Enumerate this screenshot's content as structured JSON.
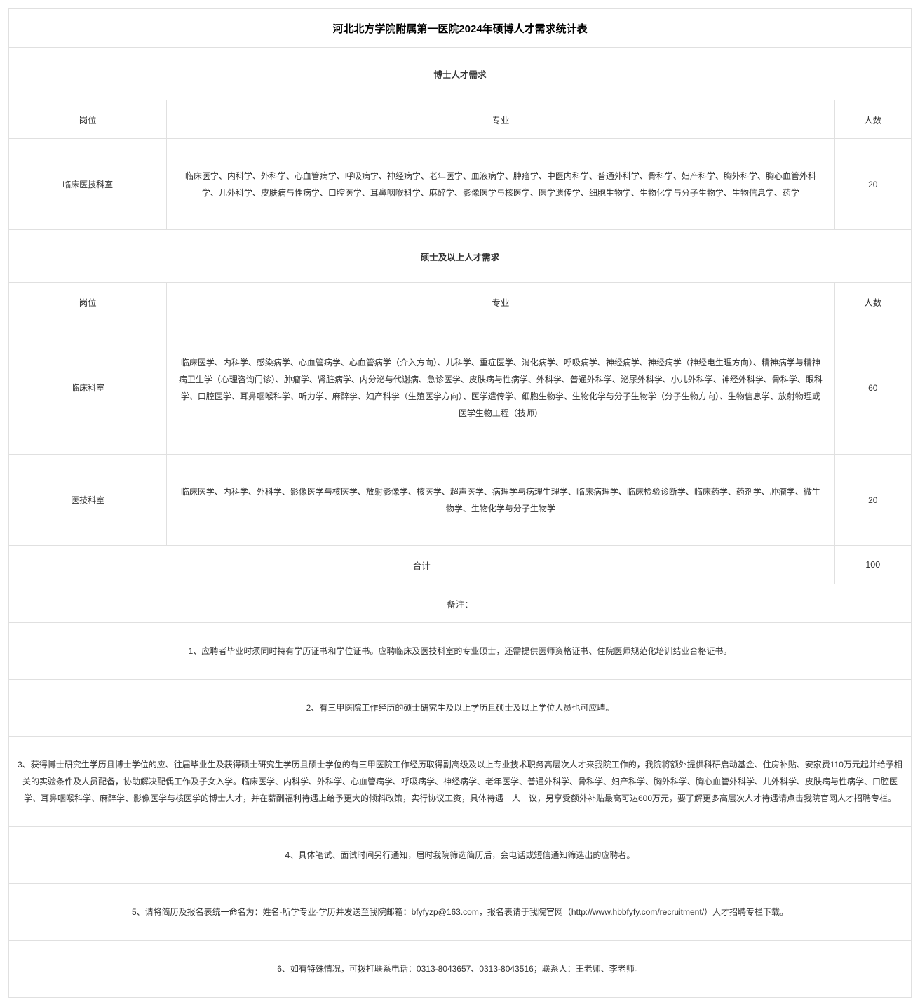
{
  "title": "河北北方学院附属第一医院2024年硕博人才需求统计表",
  "doctor": {
    "section": "博士人才需求",
    "headers": {
      "position": "岗位",
      "major": "专业",
      "count": "人数"
    },
    "rows": [
      {
        "position": "临床医技科室",
        "major": "临床医学、内科学、外科学、心血管病学、呼吸病学、神经病学、老年医学、血液病学、肿瘤学、中医内科学、普通外科学、骨科学、妇产科学、胸外科学、胸心血管外科学、儿外科学、皮肤病与性病学、口腔医学、耳鼻咽喉科学、麻醉学、影像医学与核医学、医学遗传学、细胞生物学、生物化学与分子生物学、生物信息学、药学",
        "count": "20"
      }
    ]
  },
  "master": {
    "section": "硕士及以上人才需求",
    "headers": {
      "position": "岗位",
      "major": "专业",
      "count": "人数"
    },
    "rows": [
      {
        "position": "临床科室",
        "major": "临床医学、内科学、感染病学、心血管病学、心血管病学（介入方向）、儿科学、重症医学、消化病学、呼吸病学、神经病学、神经病学（神经电生理方向）、精神病学与精神病卫生学（心理咨询门诊）、肿瘤学、肾脏病学、内分泌与代谢病、急诊医学、皮肤病与性病学、外科学、普通外科学、泌尿外科学、小儿外科学、神经外科学、骨科学、眼科学、口腔医学、耳鼻咽喉科学、听力学、麻醉学、妇产科学（生殖医学方向）、医学遗传学、细胞生物学、生物化学与分子生物学（分子生物方向）、生物信息学、放射物理或医学生物工程（技师）",
        "count": "60"
      },
      {
        "position": "医技科室",
        "major": "临床医学、内科学、外科学、影像医学与核医学、放射影像学、核医学、超声医学、病理学与病理生理学、临床病理学、临床检验诊断学、临床药学、药剂学、肿瘤学、微生物学、生物化学与分子生物学",
        "count": "20"
      }
    ]
  },
  "total": {
    "label": "合计",
    "count": "100"
  },
  "notes": {
    "header": "备注：",
    "items": [
      "1、应聘者毕业时须同时持有学历证书和学位证书。应聘临床及医技科室的专业硕士，还需提供医师资格证书、住院医师规范化培训结业合格证书。",
      "2、有三甲医院工作经历的硕士研究生及以上学历且硕士及以上学位人员也可应聘。",
      "3、获得博士研究生学历且博士学位的应、往届毕业生及获得硕士研究生学历且硕士学位的有三甲医院工作经历取得副高级及以上专业技术职务高层次人才来我院工作的，我院将额外提供科研启动基金、住房补贴、安家费110万元起并给予相关的实验条件及人员配备，协助解决配偶工作及子女入学。临床医学、内科学、外科学、心血管病学、呼吸病学、神经病学、老年医学、普通外科学、骨科学、妇产科学、胸外科学、胸心血管外科学、儿外科学、皮肤病与性病学、口腔医学、耳鼻咽喉科学、麻醉学、影像医学与核医学的博士人才，并在薪酬福利待遇上给予更大的倾斜政策，实行协议工资，具体待遇一人一议，另享受额外补贴最高可达600万元，要了解更多高层次人才待遇请点击我院官网人才招聘专栏。",
      "4、具体笔试、面试时间另行通知，届时我院筛选简历后，会电话或短信通知筛选出的应聘者。",
      "5、请将简历及报名表统一命名为：姓名-所学专业-学历并发送至我院邮箱：bfyfyzp@163.com，报名表请于我院官网（http://www.hbbfyfy.com/recruitment/）人才招聘专栏下载。",
      "6、如有特殊情况，可拨打联系电话：0313-8043657、0313-8043516；联系人：王老师、李老师。"
    ]
  },
  "colors": {
    "border": "#e0e0e0",
    "text": "#333333",
    "title": "#000000",
    "bg": "#ffffff"
  }
}
